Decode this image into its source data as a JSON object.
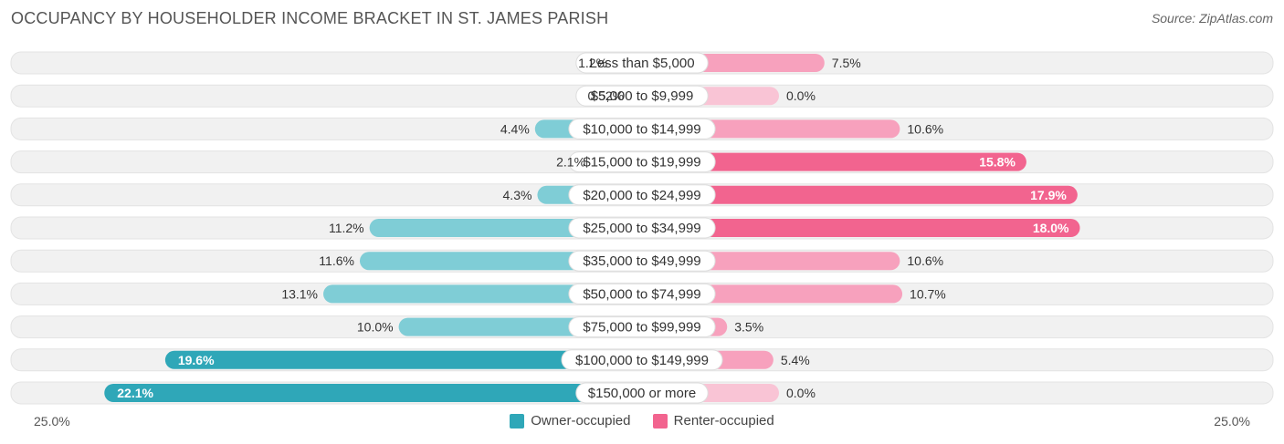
{
  "title": "OCCUPANCY BY HOUSEHOLDER INCOME BRACKET IN ST. JAMES PARISH",
  "source": "Source: ZipAtlas.com",
  "colors": {
    "owner_light": "#7fcdd6",
    "owner_dark": "#2fa7b8",
    "renter_light": "#f7a1bd",
    "renter_dark": "#f2648f",
    "row_bg": "#f1f1f1"
  },
  "chart_data": {
    "type": "bar",
    "orientation": "diverging-horizontal",
    "categories": [
      "Less than $5,000",
      "$5,000 to $9,999",
      "$10,000 to $14,999",
      "$15,000 to $19,999",
      "$20,000 to $24,999",
      "$25,000 to $34,999",
      "$35,000 to $49,999",
      "$50,000 to $74,999",
      "$75,000 to $99,999",
      "$100,000 to $149,999",
      "$150,000 or more"
    ],
    "series": [
      {
        "name": "Owner-occupied",
        "values": [
          1.2,
          0.52,
          4.4,
          2.1,
          4.3,
          11.2,
          11.6,
          13.1,
          10.0,
          19.6,
          22.1
        ],
        "labels": [
          "1.2%",
          "0.52%",
          "4.4%",
          "2.1%",
          "4.3%",
          "11.2%",
          "11.6%",
          "13.1%",
          "10.0%",
          "19.6%",
          "22.1%"
        ]
      },
      {
        "name": "Renter-occupied",
        "values": [
          7.5,
          0.0,
          10.6,
          15.8,
          17.9,
          18.0,
          10.6,
          10.7,
          3.5,
          5.4,
          0.0
        ],
        "labels": [
          "7.5%",
          "0.0%",
          "10.6%",
          "15.8%",
          "17.9%",
          "18.0%",
          "10.6%",
          "10.7%",
          "3.5%",
          "5.4%",
          "0.0%"
        ]
      }
    ],
    "xlim": [
      -25,
      25
    ],
    "axis_labels": {
      "left": "25.0%",
      "right": "25.0%"
    },
    "legend": [
      "Owner-occupied",
      "Renter-occupied"
    ],
    "legend_position": "bottom-center"
  }
}
